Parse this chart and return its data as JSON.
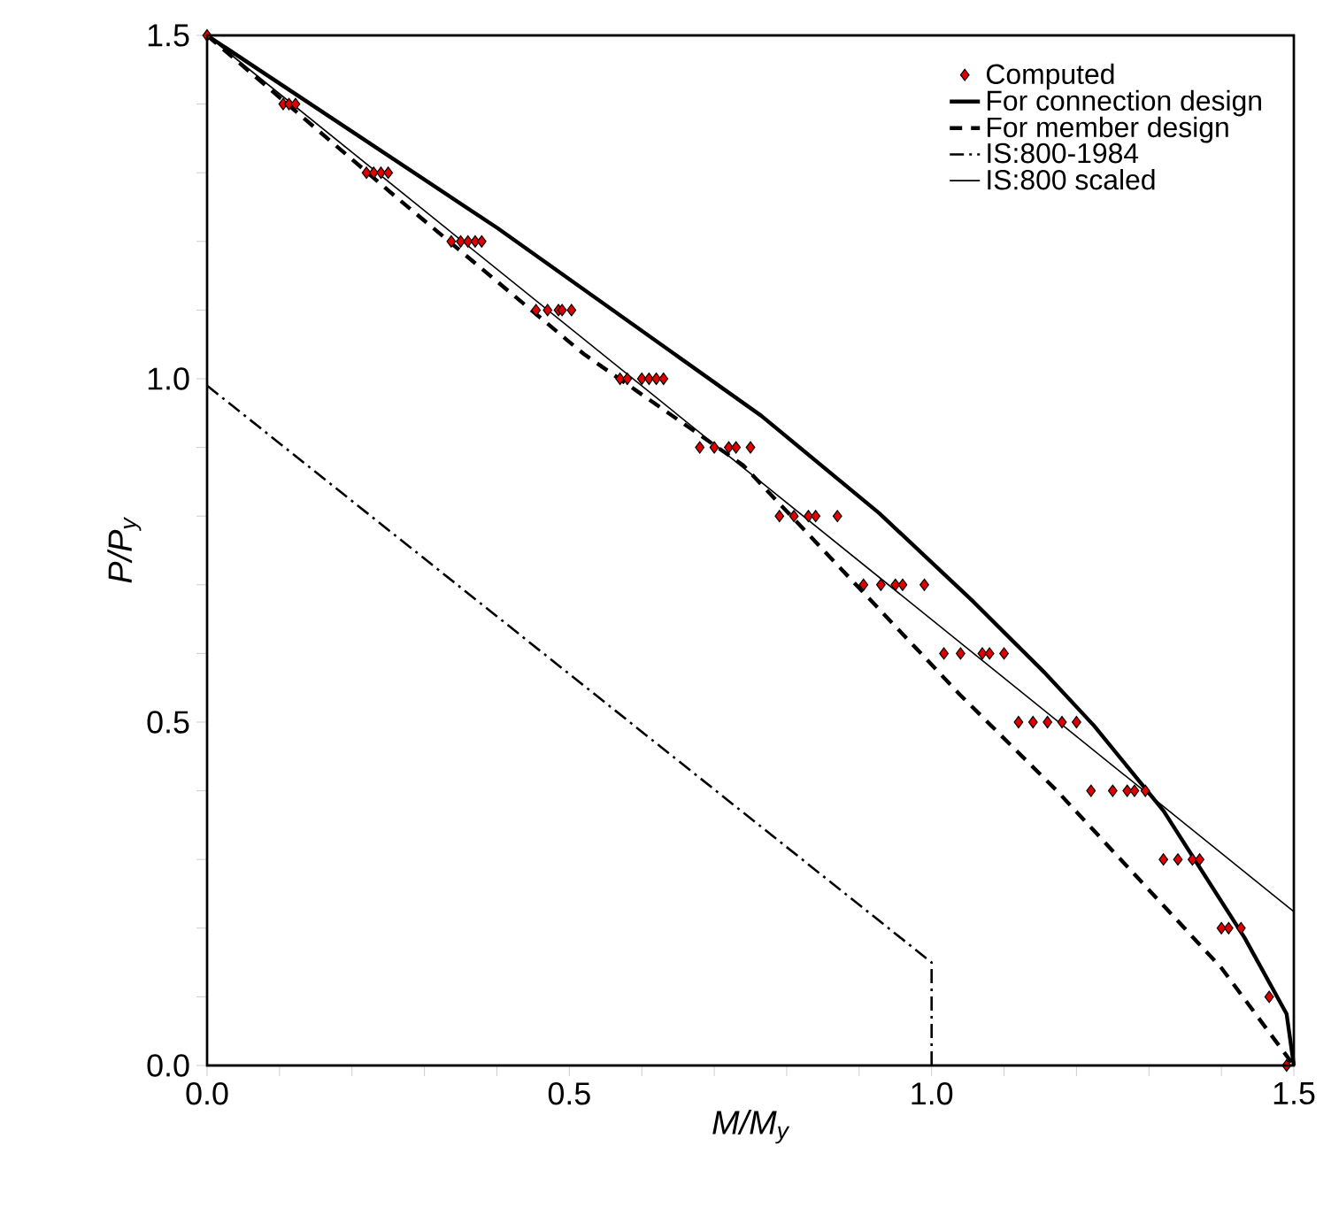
{
  "chart_data": {
    "type": "line",
    "xlabel": "M/M$_{y}$",
    "ylabel": "P/P$_{y}$",
    "xlim": [
      0,
      1.5
    ],
    "ylim": [
      0,
      1.5
    ],
    "xticks": [
      {
        "value": 0,
        "label": "0.0"
      },
      {
        "value": 0.1,
        "label": null
      },
      {
        "value": 0.2,
        "label": null
      },
      {
        "value": 0.3,
        "label": null
      },
      {
        "value": 0.4,
        "label": null
      },
      {
        "value": 0.5,
        "label": "0.5"
      },
      {
        "value": 0.6,
        "label": null
      },
      {
        "value": 0.7,
        "label": null
      },
      {
        "value": 0.8,
        "label": null
      },
      {
        "value": 0.9,
        "label": null
      },
      {
        "value": 1.0,
        "label": "1.0"
      },
      {
        "value": 1.1,
        "label": null
      },
      {
        "value": 1.2,
        "label": null
      },
      {
        "value": 1.3,
        "label": null
      },
      {
        "value": 1.4,
        "label": null
      },
      {
        "value": 1.5,
        "label": "1.5"
      }
    ],
    "yticks": [
      {
        "value": 0,
        "label": "0.0"
      },
      {
        "value": 0.1,
        "label": null
      },
      {
        "value": 0.2,
        "label": null
      },
      {
        "value": 0.3,
        "label": null
      },
      {
        "value": 0.4,
        "label": null
      },
      {
        "value": 0.5,
        "label": "0.5"
      },
      {
        "value": 0.6,
        "label": null
      },
      {
        "value": 0.7,
        "label": null
      },
      {
        "value": 0.8,
        "label": null
      },
      {
        "value": 0.9,
        "label": null
      },
      {
        "value": 1.0,
        "label": "1.0"
      },
      {
        "value": 1.1,
        "label": null
      },
      {
        "value": 1.2,
        "label": null
      },
      {
        "value": 1.3,
        "label": null
      },
      {
        "value": 1.4,
        "label": null
      },
      {
        "value": 1.5,
        "label": "1.5"
      }
    ],
    "legend": "top right",
    "grid": false,
    "series": [
      {
        "name": "Computed",
        "type": "scatter",
        "marker": "diamond",
        "color": "#e00000",
        "x": [
          0,
          0.105,
          0.113,
          0.122,
          0.22,
          0.23,
          0.24,
          0.25,
          0.337,
          0.35,
          0.36,
          0.37,
          0.379,
          0.454,
          0.47,
          0.485,
          0.49,
          0.503,
          0.57,
          0.58,
          0.6,
          0.61,
          0.62,
          0.63,
          0.68,
          0.7,
          0.72,
          0.73,
          0.75,
          0.79,
          0.81,
          0.83,
          0.84,
          0.87,
          0.906,
          0.93,
          0.95,
          0.96,
          0.99,
          1.017,
          1.04,
          1.07,
          1.08,
          1.1,
          1.12,
          1.14,
          1.16,
          1.18,
          1.2,
          1.22,
          1.25,
          1.27,
          1.28,
          1.295,
          1.32,
          1.34,
          1.36,
          1.37,
          1.4,
          1.41,
          1.427,
          1.466,
          1.49
        ],
        "values": [
          1.5,
          1.4,
          1.4,
          1.4,
          1.3,
          1.3,
          1.3,
          1.3,
          1.2,
          1.2,
          1.2,
          1.2,
          1.2,
          1.1,
          1.1,
          1.1,
          1.1,
          1.1,
          1.0,
          1.0,
          1.0,
          1.0,
          1.0,
          1.0,
          0.9,
          0.9,
          0.9,
          0.9,
          0.9,
          0.8,
          0.8,
          0.8,
          0.8,
          0.8,
          0.7,
          0.7,
          0.7,
          0.7,
          0.7,
          0.6,
          0.6,
          0.6,
          0.6,
          0.6,
          0.5,
          0.5,
          0.5,
          0.5,
          0.5,
          0.4,
          0.4,
          0.4,
          0.4,
          0.4,
          0.3,
          0.3,
          0.3,
          0.3,
          0.2,
          0.2,
          0.2,
          0.1,
          0.0
        ]
      },
      {
        "name": "For connection design",
        "line_style": "solid",
        "color": "#000000",
        "x": [
          0,
          0.4,
          0.765,
          0.928,
          1.058,
          1.156,
          1.224,
          1.32,
          1.432,
          1.49,
          1.5
        ],
        "values": [
          1.5,
          1.22,
          0.946,
          0.804,
          0.675,
          0.572,
          0.495,
          0.371,
          0.186,
          0.075,
          0
        ]
      },
      {
        "name": "For member design",
        "line_style": "dashed",
        "color": "#000000",
        "x": [
          0,
          0.257,
          0.52,
          0.74,
          1.04,
          1.173,
          1.4,
          1.5
        ],
        "values": [
          1.5,
          1.268,
          1.036,
          0.874,
          0.539,
          0.4,
          0.142,
          0
        ]
      },
      {
        "name": "IS:800-1984",
        "line_style": "dashdot",
        "color": "#000000",
        "x": [
          0,
          1.0,
          1.0
        ],
        "values": [
          0.99,
          0.15,
          0
        ]
      },
      {
        "name": "IS:800 scaled",
        "line_style": "solid",
        "color": "#000000",
        "x": [
          0,
          1.5
        ],
        "values": [
          1.5,
          0.224
        ]
      }
    ]
  }
}
